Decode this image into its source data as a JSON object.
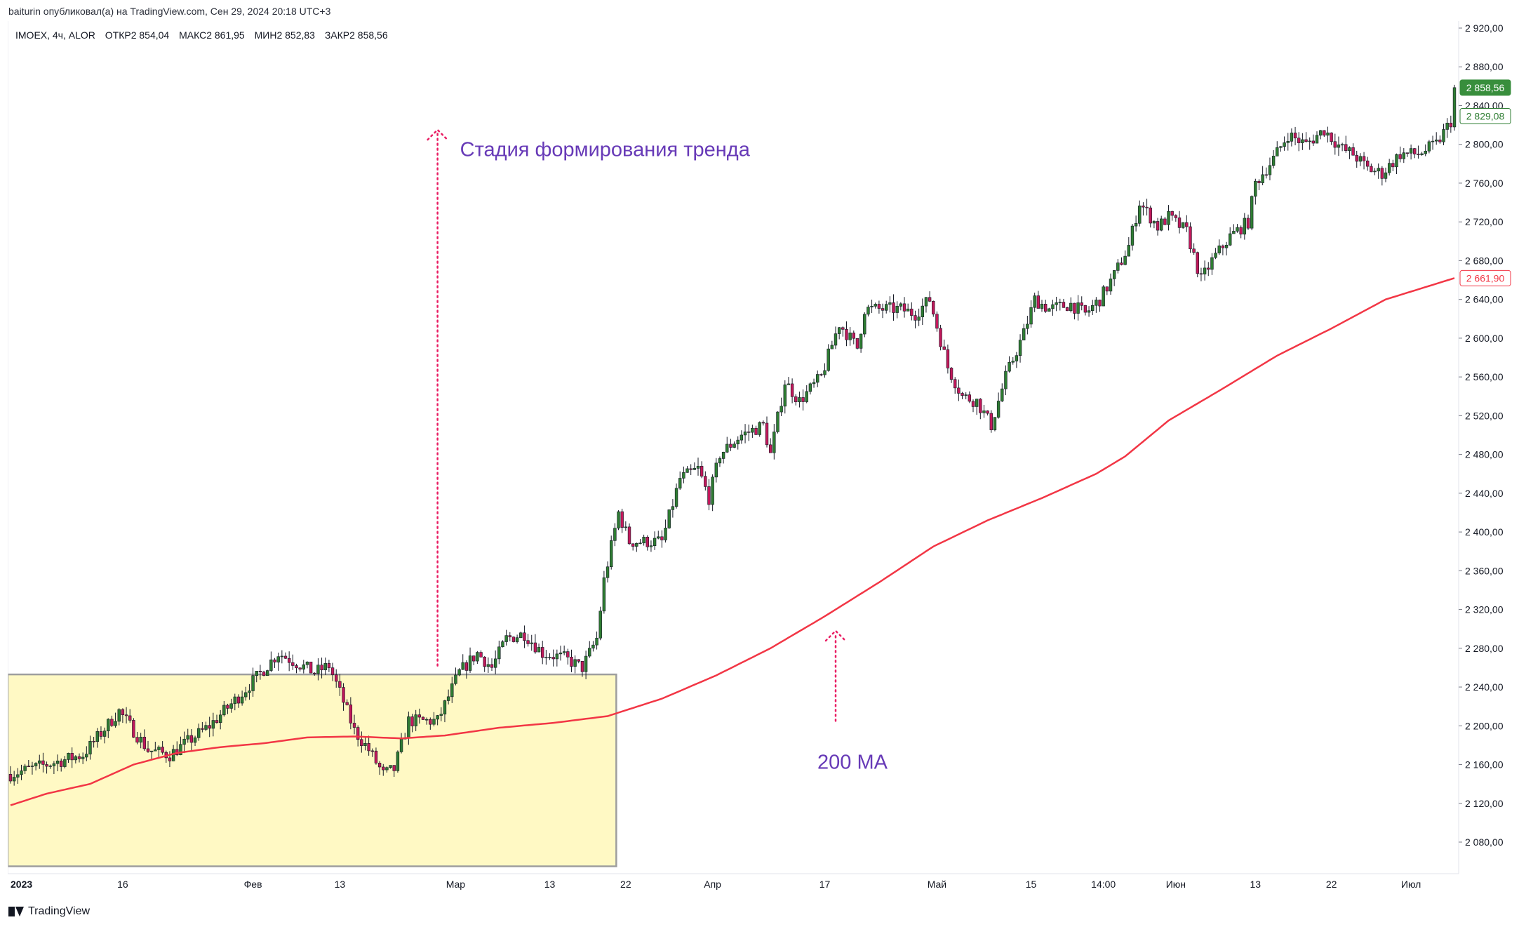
{
  "header": {
    "attribution": "baiturin опубликовал(а) на TradingView.com, Сен 29, 2024 20:18 UTC+3"
  },
  "legend": {
    "symbol": "IMOEX, 4ч, ALOR",
    "open": "ОТКР2 854,04",
    "high": "МАКС2 861,95",
    "low": "МИН2 852,83",
    "close": "ЗАКР2 858,56"
  },
  "annotations": {
    "trend_stage": "Стадия формирования тренда",
    "ma_label": "200 MA"
  },
  "brand": {
    "name": "TradingView"
  },
  "colors": {
    "up": "#2e7d32",
    "down": "#c2185b",
    "ma": "#f23645",
    "zone_fill": "#fff9c4",
    "zone_border": "#9e9e9e",
    "annotation_arrow": "#e91e63",
    "annotation_text": "#673ab7",
    "last_price_badge": "#388e3c"
  },
  "chart_data": {
    "type": "candlestick",
    "y_axis": {
      "min": 2060,
      "max": 2930,
      "ticks": [
        2080,
        2120,
        2160,
        2200,
        2240,
        2280,
        2320,
        2360,
        2400,
        2440,
        2480,
        2520,
        2560,
        2600,
        2640,
        2680,
        2720,
        2760,
        2800,
        2840,
        2880,
        2920
      ],
      "tick_labels": [
        "2 080,00",
        "2 120,00",
        "2 160,00",
        "2 200,00",
        "2 240,00",
        "2 280,00",
        "2 320,00",
        "2 360,00",
        "2 400,00",
        "2 440,00",
        "2 480,00",
        "2 520,00",
        "2 560,00",
        "2 600,00",
        "2 640,00",
        "2 680,00",
        "2 720,00",
        "2 760,00",
        "2 800,00",
        "2 840,00",
        "2 880,00",
        "2 920,00"
      ]
    },
    "x_axis": {
      "labels": [
        {
          "text": "2023",
          "i": 0,
          "bold": true
        },
        {
          "text": "16",
          "i": 31
        },
        {
          "text": "Фев",
          "i": 67
        },
        {
          "text": "13",
          "i": 91
        },
        {
          "text": "Мар",
          "i": 123
        },
        {
          "text": "13",
          "i": 149
        },
        {
          "text": "22",
          "i": 170
        },
        {
          "text": "Апр",
          "i": 194
        },
        {
          "text": "17",
          "i": 225
        },
        {
          "text": "Май",
          "i": 256
        },
        {
          "text": "15",
          "i": 282
        },
        {
          "text": "14:00",
          "i": 302
        },
        {
          "text": "Июн",
          "i": 322
        },
        {
          "text": "13",
          "i": 344
        },
        {
          "text": "22",
          "i": 365
        },
        {
          "text": "Июл",
          "i": 387
        }
      ],
      "count": 400
    },
    "price_path": [
      [
        0,
        2150
      ],
      [
        10,
        2160
      ],
      [
        20,
        2170
      ],
      [
        30,
        2215
      ],
      [
        38,
        2175
      ],
      [
        44,
        2170
      ],
      [
        55,
        2200
      ],
      [
        63,
        2230
      ],
      [
        68,
        2250
      ],
      [
        74,
        2275
      ],
      [
        84,
        2255
      ],
      [
        88,
        2262
      ],
      [
        92,
        2225
      ],
      [
        95,
        2195
      ],
      [
        99,
        2175
      ],
      [
        103,
        2150
      ],
      [
        106,
        2155
      ],
      [
        110,
        2205
      ],
      [
        118,
        2205
      ],
      [
        124,
        2255
      ],
      [
        129,
        2275
      ],
      [
        133,
        2260
      ],
      [
        137,
        2290
      ],
      [
        142,
        2295
      ],
      [
        147,
        2275
      ],
      [
        153,
        2270
      ],
      [
        158,
        2260
      ],
      [
        162,
        2290
      ],
      [
        164,
        2350
      ],
      [
        168,
        2420
      ],
      [
        171,
        2390
      ],
      [
        180,
        2390
      ],
      [
        185,
        2455
      ],
      [
        190,
        2465
      ],
      [
        193,
        2435
      ],
      [
        196,
        2480
      ],
      [
        202,
        2500
      ],
      [
        208,
        2510
      ],
      [
        210,
        2480
      ],
      [
        214,
        2555
      ],
      [
        218,
        2535
      ],
      [
        224,
        2560
      ],
      [
        229,
        2615
      ],
      [
        234,
        2590
      ],
      [
        236,
        2630
      ],
      [
        241,
        2630
      ],
      [
        246,
        2630
      ],
      [
        250,
        2625
      ],
      [
        254,
        2640
      ],
      [
        259,
        2570
      ],
      [
        263,
        2540
      ],
      [
        267,
        2535
      ],
      [
        271,
        2510
      ],
      [
        275,
        2560
      ],
      [
        280,
        2605
      ],
      [
        283,
        2640
      ],
      [
        287,
        2630
      ],
      [
        293,
        2635
      ],
      [
        297,
        2625
      ],
      [
        301,
        2640
      ],
      [
        305,
        2665
      ],
      [
        309,
        2695
      ],
      [
        312,
        2740
      ],
      [
        317,
        2715
      ],
      [
        320,
        2725
      ],
      [
        325,
        2710
      ],
      [
        329,
        2660
      ],
      [
        332,
        2680
      ],
      [
        337,
        2705
      ],
      [
        342,
        2720
      ],
      [
        344,
        2760
      ],
      [
        349,
        2785
      ],
      [
        353,
        2810
      ],
      [
        358,
        2800
      ],
      [
        363,
        2815
      ],
      [
        368,
        2795
      ],
      [
        371,
        2790
      ],
      [
        375,
        2775
      ],
      [
        379,
        2770
      ],
      [
        384,
        2790
      ],
      [
        389,
        2790
      ],
      [
        394,
        2800
      ],
      [
        399,
        2830
      ]
    ],
    "last_close": 2858.56,
    "last_close_label": "2 858,56",
    "axis_value_2": 2829.08,
    "axis_value_2_label": "2 829,08",
    "ma_path": [
      [
        0,
        2118
      ],
      [
        10,
        2130
      ],
      [
        22,
        2140
      ],
      [
        34,
        2160
      ],
      [
        46,
        2172
      ],
      [
        58,
        2178
      ],
      [
        70,
        2182
      ],
      [
        82,
        2188
      ],
      [
        95,
        2189
      ],
      [
        108,
        2187
      ],
      [
        120,
        2190
      ],
      [
        135,
        2198
      ],
      [
        150,
        2203
      ],
      [
        165,
        2210
      ],
      [
        180,
        2228
      ],
      [
        195,
        2252
      ],
      [
        210,
        2280
      ],
      [
        225,
        2313
      ],
      [
        240,
        2348
      ],
      [
        255,
        2385
      ],
      [
        270,
        2412
      ],
      [
        285,
        2435
      ],
      [
        300,
        2460
      ],
      [
        308,
        2478
      ],
      [
        320,
        2515
      ],
      [
        335,
        2548
      ],
      [
        350,
        2582
      ],
      [
        365,
        2610
      ],
      [
        380,
        2640
      ],
      [
        399,
        2662
      ]
    ],
    "ma_last": 2661.9,
    "ma_last_label": "2 661,90",
    "ma_name": "200 MA",
    "zone": {
      "i_start": 0,
      "i_end": 167,
      "y_low": 2055,
      "y_high": 2253
    },
    "trend_arrow": {
      "i": 118,
      "y_from": 2262,
      "y_to": 2815
    },
    "ma_arrow": {
      "i": 228,
      "y_from": 2205,
      "y_to": 2298
    }
  }
}
